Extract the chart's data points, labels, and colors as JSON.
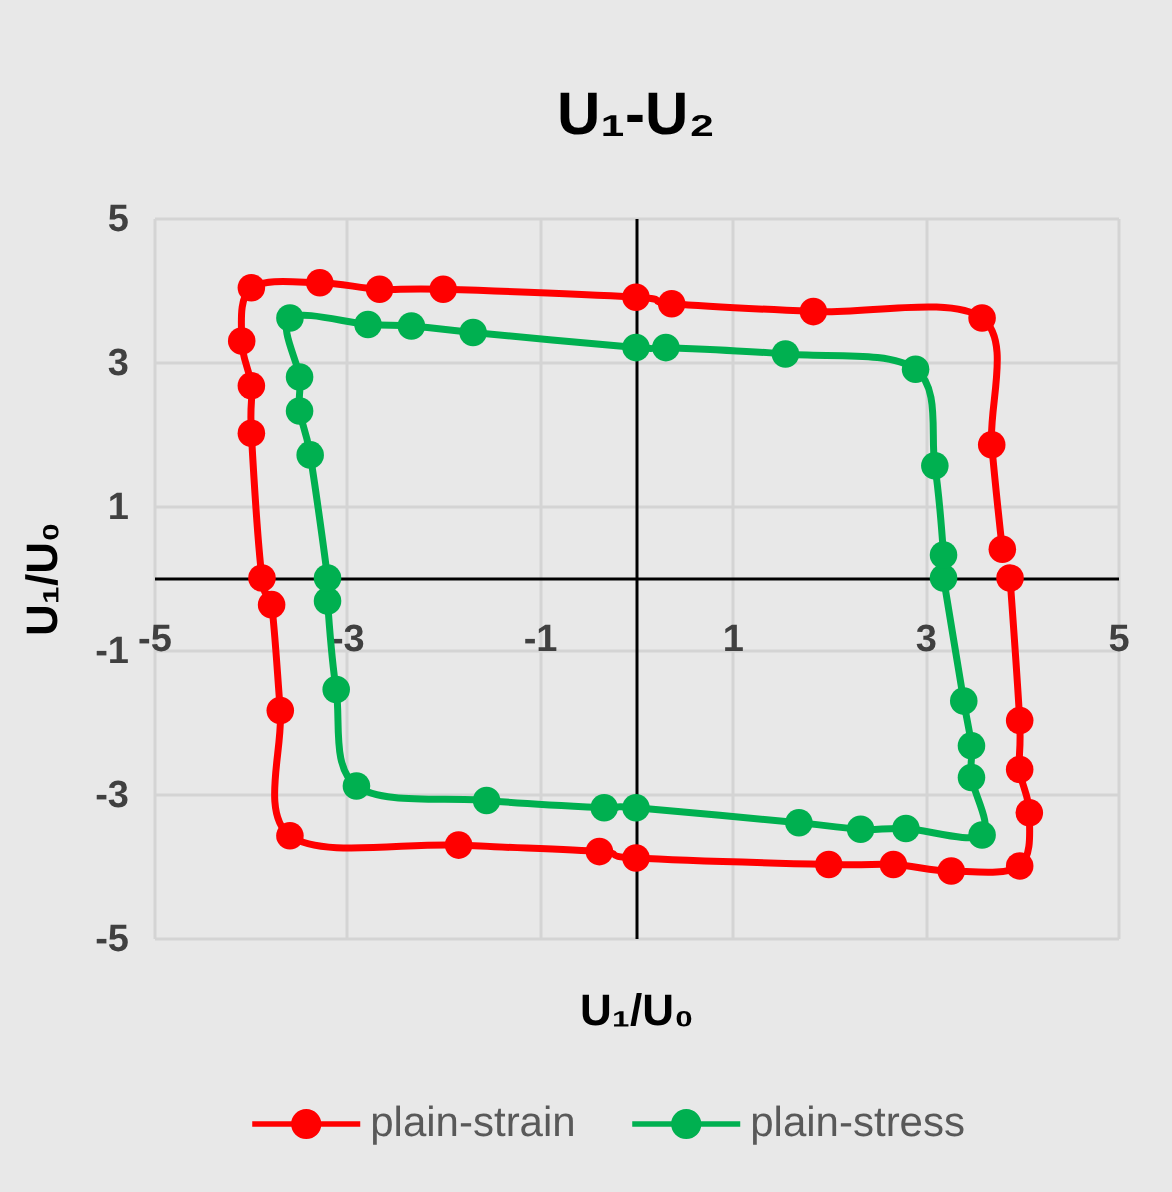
{
  "chart_data": {
    "type": "line",
    "title": "U₁-U₂",
    "xlabel": "U₁/U₀",
    "ylabel": "U₁/U₀",
    "xlim": [
      -5,
      5
    ],
    "ylim": [
      -5,
      5
    ],
    "xticks": [
      -5,
      -3,
      -1,
      1,
      3,
      5
    ],
    "yticks": [
      -5,
      -3,
      -1,
      1,
      3,
      5
    ],
    "grid": true,
    "legend": "bottom",
    "marker": "circle",
    "line_style": "solid",
    "series": [
      {
        "name": "plain-strain",
        "color": "#ff0000",
        "x": [
          3.88,
          3.98,
          3.98,
          4.08,
          3.98,
          3.27,
          2.67,
          2.0,
          0,
          -0.38,
          -1.84,
          -3.59,
          -3.69,
          -3.78,
          -3.88,
          -3.99,
          -3.99,
          -4.09,
          -3.99,
          -3.28,
          -2.66,
          -2.0,
          0,
          0.37,
          1.84,
          3.59,
          3.69,
          3.8
        ],
        "values": [
          0,
          -1.98,
          -2.66,
          -3.26,
          -4.0,
          -4.07,
          -3.98,
          -3.98,
          -3.89,
          -3.8,
          -3.71,
          -3.58,
          -1.84,
          -0.37,
          0,
          2.01,
          2.67,
          3.29,
          4.03,
          4.1,
          4.01,
          4.01,
          3.9,
          3.81,
          3.7,
          3.61,
          1.85,
          0.4
        ]
      },
      {
        "name": "plain-stress",
        "color": "#00b050",
        "x": [
          3.19,
          3.4,
          3.48,
          3.48,
          3.59,
          2.8,
          2.33,
          1.69,
          0,
          -0.33,
          -1.55,
          -2.9,
          -3.11,
          -3.2,
          -3.2,
          -3.38,
          -3.49,
          -3.49,
          -3.59,
          -2.78,
          -2.33,
          -1.69,
          0,
          0.31,
          1.55,
          2.9,
          3.1,
          3.19
        ],
        "values": [
          0,
          -1.71,
          -2.33,
          -2.77,
          -3.57,
          -3.48,
          -3.49,
          -3.4,
          -3.19,
          -3.19,
          -3.09,
          -2.89,
          -1.55,
          -0.32,
          0,
          1.71,
          2.32,
          2.79,
          3.61,
          3.52,
          3.5,
          3.41,
          3.2,
          3.2,
          3.11,
          2.9,
          1.56,
          0.32
        ]
      }
    ]
  }
}
